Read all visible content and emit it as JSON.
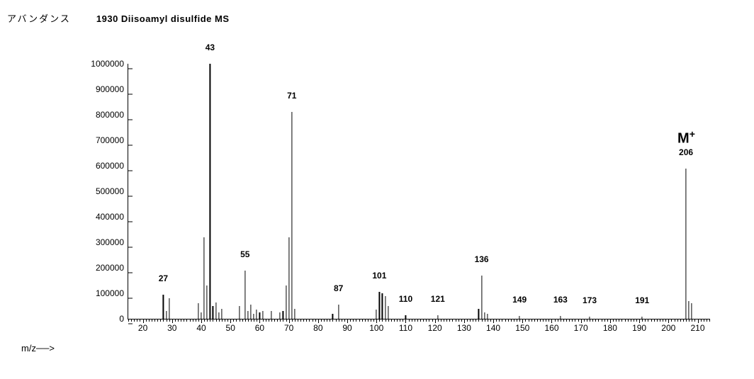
{
  "header": {
    "jp_label": "アバンダンス",
    "compound_title": "1930   Diisoamyl disulfide   MS"
  },
  "axis": {
    "x_label": "m/z──>",
    "y_label": ""
  },
  "chart": {
    "type": "mass-spectrum",
    "xlim": [
      15,
      214
    ],
    "ylim": [
      0,
      1000000
    ],
    "x_major_step": 10,
    "x_minor_step": 1,
    "y_step": 100000,
    "background_color": "#ffffff",
    "axis_color": "#000000",
    "peak_color": "#000000",
    "font_family": "Helvetica",
    "tick_fontsize": 12,
    "label_fontsize": 12,
    "molecular_ion_label": "M",
    "molecular_ion_sup": "+",
    "molecular_ion_x": 206,
    "y_ticks": [
      {
        "v": 0,
        "label": "0"
      },
      {
        "v": 100000,
        "label": "100000"
      },
      {
        "v": 200000,
        "label": "200000"
      },
      {
        "v": 300000,
        "label": "300000"
      },
      {
        "v": 400000,
        "label": "400000"
      },
      {
        "v": 500000,
        "label": "500000"
      },
      {
        "v": 600000,
        "label": "600000"
      },
      {
        "v": 700000,
        "label": "700000"
      },
      {
        "v": 800000,
        "label": "800000"
      },
      {
        "v": 900000,
        "label": "900000"
      },
      {
        "v": 1000000,
        "label": "1000000"
      }
    ],
    "x_ticks": [
      {
        "v": 20,
        "label": "20"
      },
      {
        "v": 30,
        "label": "30"
      },
      {
        "v": 40,
        "label": "40"
      },
      {
        "v": 50,
        "label": "50"
      },
      {
        "v": 60,
        "label": "60"
      },
      {
        "v": 70,
        "label": "70"
      },
      {
        "v": 80,
        "label": "80"
      },
      {
        "v": 90,
        "label": "90"
      },
      {
        "v": 100,
        "label": "100"
      },
      {
        "v": 110,
        "label": "110"
      },
      {
        "v": 120,
        "label": "120"
      },
      {
        "v": 130,
        "label": "130"
      },
      {
        "v": 140,
        "label": "140"
      },
      {
        "v": 150,
        "label": "150"
      },
      {
        "v": 160,
        "label": "160"
      },
      {
        "v": 170,
        "label": "170"
      },
      {
        "v": 180,
        "label": "180"
      },
      {
        "v": 190,
        "label": "190"
      },
      {
        "v": 200,
        "label": "200"
      },
      {
        "v": 210,
        "label": "210"
      }
    ],
    "peaks": [
      {
        "mz": 27,
        "intensity": 95000,
        "label": "27"
      },
      {
        "mz": 28,
        "intensity": 30000
      },
      {
        "mz": 29,
        "intensity": 80000
      },
      {
        "mz": 39,
        "intensity": 60000
      },
      {
        "mz": 40,
        "intensity": 25000
      },
      {
        "mz": 41,
        "intensity": 320000
      },
      {
        "mz": 42,
        "intensity": 130000
      },
      {
        "mz": 43,
        "intensity": 1000000,
        "label": "43"
      },
      {
        "mz": 44,
        "intensity": 50000
      },
      {
        "mz": 45,
        "intensity": 65000
      },
      {
        "mz": 46,
        "intensity": 25000
      },
      {
        "mz": 47,
        "intensity": 40000
      },
      {
        "mz": 53,
        "intensity": 50000
      },
      {
        "mz": 55,
        "intensity": 190000,
        "label": "55"
      },
      {
        "mz": 56,
        "intensity": 30000
      },
      {
        "mz": 57,
        "intensity": 55000
      },
      {
        "mz": 58,
        "intensity": 20000
      },
      {
        "mz": 59,
        "intensity": 35000
      },
      {
        "mz": 60,
        "intensity": 25000
      },
      {
        "mz": 61,
        "intensity": 30000
      },
      {
        "mz": 64,
        "intensity": 30000
      },
      {
        "mz": 67,
        "intensity": 25000
      },
      {
        "mz": 68,
        "intensity": 30000
      },
      {
        "mz": 69,
        "intensity": 130000
      },
      {
        "mz": 70,
        "intensity": 320000
      },
      {
        "mz": 71,
        "intensity": 810000,
        "label": "71"
      },
      {
        "mz": 72,
        "intensity": 40000
      },
      {
        "mz": 85,
        "intensity": 20000
      },
      {
        "mz": 87,
        "intensity": 55000,
        "label": "87"
      },
      {
        "mz": 100,
        "intensity": 35000
      },
      {
        "mz": 101,
        "intensity": 105000,
        "label": "101"
      },
      {
        "mz": 102,
        "intensity": 100000
      },
      {
        "mz": 103,
        "intensity": 90000
      },
      {
        "mz": 104,
        "intensity": 50000
      },
      {
        "mz": 110,
        "intensity": 15000,
        "label": "110"
      },
      {
        "mz": 121,
        "intensity": 15000,
        "label": "121"
      },
      {
        "mz": 135,
        "intensity": 40000
      },
      {
        "mz": 136,
        "intensity": 170000,
        "label": "136"
      },
      {
        "mz": 137,
        "intensity": 25000
      },
      {
        "mz": 138,
        "intensity": 20000
      },
      {
        "mz": 149,
        "intensity": 10000,
        "label": "149"
      },
      {
        "mz": 163,
        "intensity": 10000,
        "label": "163"
      },
      {
        "mz": 173,
        "intensity": 8000,
        "label": "173"
      },
      {
        "mz": 191,
        "intensity": 8000,
        "label": "191"
      },
      {
        "mz": 206,
        "intensity": 590000,
        "label": "206"
      },
      {
        "mz": 207,
        "intensity": 70000
      },
      {
        "mz": 208,
        "intensity": 60000
      }
    ]
  }
}
